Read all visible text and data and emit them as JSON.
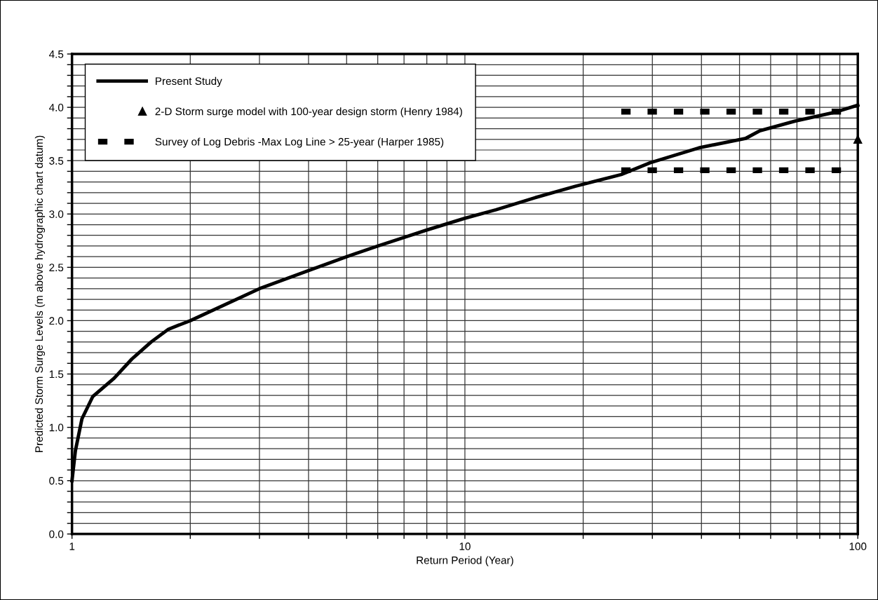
{
  "chart_data": {
    "type": "line",
    "xlabel": "Return Period (Year)",
    "ylabel": "Predicted Storm Surge Levels (m above hydrographic chart datum)",
    "log": "x",
    "grid": true,
    "legend": "top left",
    "xlim": [
      1,
      100
    ],
    "ylim": [
      0,
      4.5
    ],
    "xticks": [
      1,
      {
        "value": 2,
        "label": null
      },
      {
        "value": 3,
        "label": null
      },
      {
        "value": 4,
        "label": null
      },
      {
        "value": 5,
        "label": null
      },
      {
        "value": 6,
        "label": null
      },
      {
        "value": 7,
        "label": null
      },
      {
        "value": 8,
        "label": null
      },
      {
        "value": 9,
        "label": null
      },
      10,
      {
        "value": 20,
        "label": null
      },
      {
        "value": 30,
        "label": null
      },
      {
        "value": 40,
        "label": null
      },
      {
        "value": 50,
        "label": null
      },
      {
        "value": 60,
        "label": null
      },
      {
        "value": 70,
        "label": null
      },
      {
        "value": 80,
        "label": null
      },
      {
        "value": 90,
        "label": null
      },
      100
    ],
    "yticks": [
      {
        "value": 0,
        "label": "0.0"
      },
      {
        "value": 0.1,
        "label": null
      },
      {
        "value": 0.2,
        "label": null
      },
      {
        "value": 0.3,
        "label": null
      },
      {
        "value": 0.4,
        "label": null
      },
      {
        "value": 0.5,
        "label": "0.5"
      },
      {
        "value": 0.6,
        "label": null
      },
      {
        "value": 0.7,
        "label": null
      },
      {
        "value": 0.8,
        "label": null
      },
      {
        "value": 0.9,
        "label": null
      },
      {
        "value": 1,
        "label": "1.0"
      },
      {
        "value": 1.1,
        "label": null
      },
      {
        "value": 1.2,
        "label": null
      },
      {
        "value": 1.3,
        "label": null
      },
      {
        "value": 1.4,
        "label": null
      },
      {
        "value": 1.5,
        "label": "1.5"
      },
      {
        "value": 1.6,
        "label": null
      },
      {
        "value": 1.7,
        "label": null
      },
      {
        "value": 1.8,
        "label": null
      },
      {
        "value": 1.9,
        "label": null
      },
      {
        "value": 2,
        "label": "2.0"
      },
      {
        "value": 2.1,
        "label": null
      },
      {
        "value": 2.2,
        "label": null
      },
      {
        "value": 2.3,
        "label": null
      },
      {
        "value": 2.4,
        "label": null
      },
      {
        "value": 2.5,
        "label": "2.5"
      },
      {
        "value": 2.6,
        "label": null
      },
      {
        "value": 2.7,
        "label": null
      },
      {
        "value": 2.8,
        "label": null
      },
      {
        "value": 2.9,
        "label": null
      },
      {
        "value": 3,
        "label": "3.0"
      },
      {
        "value": 3.1,
        "label": null
      },
      {
        "value": 3.2,
        "label": null
      },
      {
        "value": 3.3,
        "label": null
      },
      {
        "value": 3.4,
        "label": null
      },
      {
        "value": 3.5,
        "label": "3.5"
      },
      {
        "value": 3.6,
        "label": null
      },
      {
        "value": 3.7,
        "label": null
      },
      {
        "value": 3.8,
        "label": null
      },
      {
        "value": 3.9,
        "label": null
      },
      {
        "value": 4,
        "label": "4.0"
      },
      {
        "value": 4.1,
        "label": null
      },
      {
        "value": 4.2,
        "label": null
      },
      {
        "value": 4.3,
        "label": null
      },
      {
        "value": 4.4,
        "label": null
      },
      {
        "value": 4.5,
        "label": "4.5"
      }
    ],
    "series": [
      {
        "name": "Present Study",
        "color": "#000000",
        "marker": "none",
        "line_style": "solid",
        "x": [
          1,
          1.02,
          1.06,
          1.13,
          1.28,
          1.42,
          1.59,
          1.76,
          2,
          3,
          4,
          5,
          6,
          7,
          8,
          10,
          12,
          15,
          19.1,
          25,
          29.6,
          39.4,
          51.9,
          56.3,
          69.1,
          86.7,
          100
        ],
        "values": [
          0.5,
          0.78,
          1.08,
          1.29,
          1.46,
          1.64,
          1.8,
          1.92,
          2.0,
          2.3,
          2.47,
          2.6,
          2.7,
          2.78,
          2.85,
          2.96,
          3.04,
          3.15,
          3.26,
          3.37,
          3.48,
          3.62,
          3.71,
          3.78,
          3.87,
          3.95,
          4.02
        ]
      },
      {
        "name": "2-D Storm surge model with 100-year design storm (Henry 1984)",
        "type": "scatter",
        "color": "#000000",
        "marker": "triangle",
        "x": [
          100
        ],
        "values": [
          3.7
        ]
      },
      {
        "name": "Survey of Log Debris -Max Log Line > 25-year (Harper 1985)",
        "color": "#000000",
        "marker": "none",
        "line_style": "dashed",
        "x": [
          25,
          100
        ],
        "values": [
          3.96,
          3.96
        ]
      },
      {
        "color": "#000000",
        "marker": "none",
        "line_style": "dashed",
        "x": [
          25,
          100
        ],
        "values": [
          3.41,
          3.41
        ]
      }
    ]
  }
}
